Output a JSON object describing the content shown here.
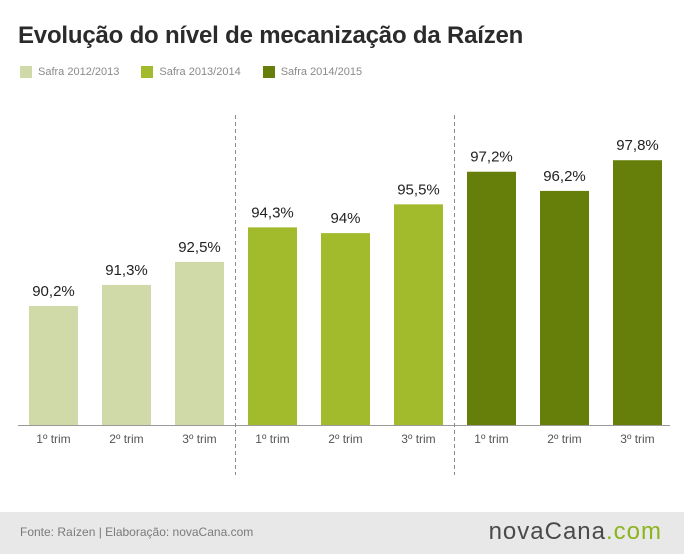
{
  "header": {
    "title": "Evolução do nível de mecanização da Raízen"
  },
  "legend": [
    {
      "label": "Safra 2012/2013",
      "color": "#d0d9a8"
    },
    {
      "label": "Safra 2013/2014",
      "color": "#a2bb2c"
    },
    {
      "label": "Safra 2014/2015",
      "color": "#667f0b"
    }
  ],
  "chart_data": {
    "type": "bar",
    "title": "Evolução do nível de mecanização da Raízen",
    "categories": [
      "1º trim",
      "2º trim",
      "3º trim"
    ],
    "series": [
      {
        "name": "Safra 2012/2013",
        "values": [
          90.2,
          91.3,
          92.5
        ],
        "labels": [
          "90,2%",
          "91,3%",
          "92,5%"
        ],
        "color": "#d0d9a8"
      },
      {
        "name": "Safra 2013/2014",
        "values": [
          94.3,
          94,
          95.5
        ],
        "labels": [
          "94,3%",
          "94%",
          "95,5%"
        ],
        "color": "#a2bb2c"
      },
      {
        "name": "Safra 2014/2015",
        "values": [
          97.2,
          96.2,
          97.8
        ],
        "labels": [
          "97,2%",
          "96,2%",
          "97,8%"
        ],
        "color": "#667f0b"
      }
    ],
    "ylim": [
      84,
      100
    ],
    "grid": false,
    "legend_position": "top-left"
  },
  "footer": {
    "source": "Fonte: Raízen | Elaboração: novaCana.com",
    "logo_main": "nova",
    "logo_mid": "Cana",
    "logo_suffix": ".com"
  }
}
